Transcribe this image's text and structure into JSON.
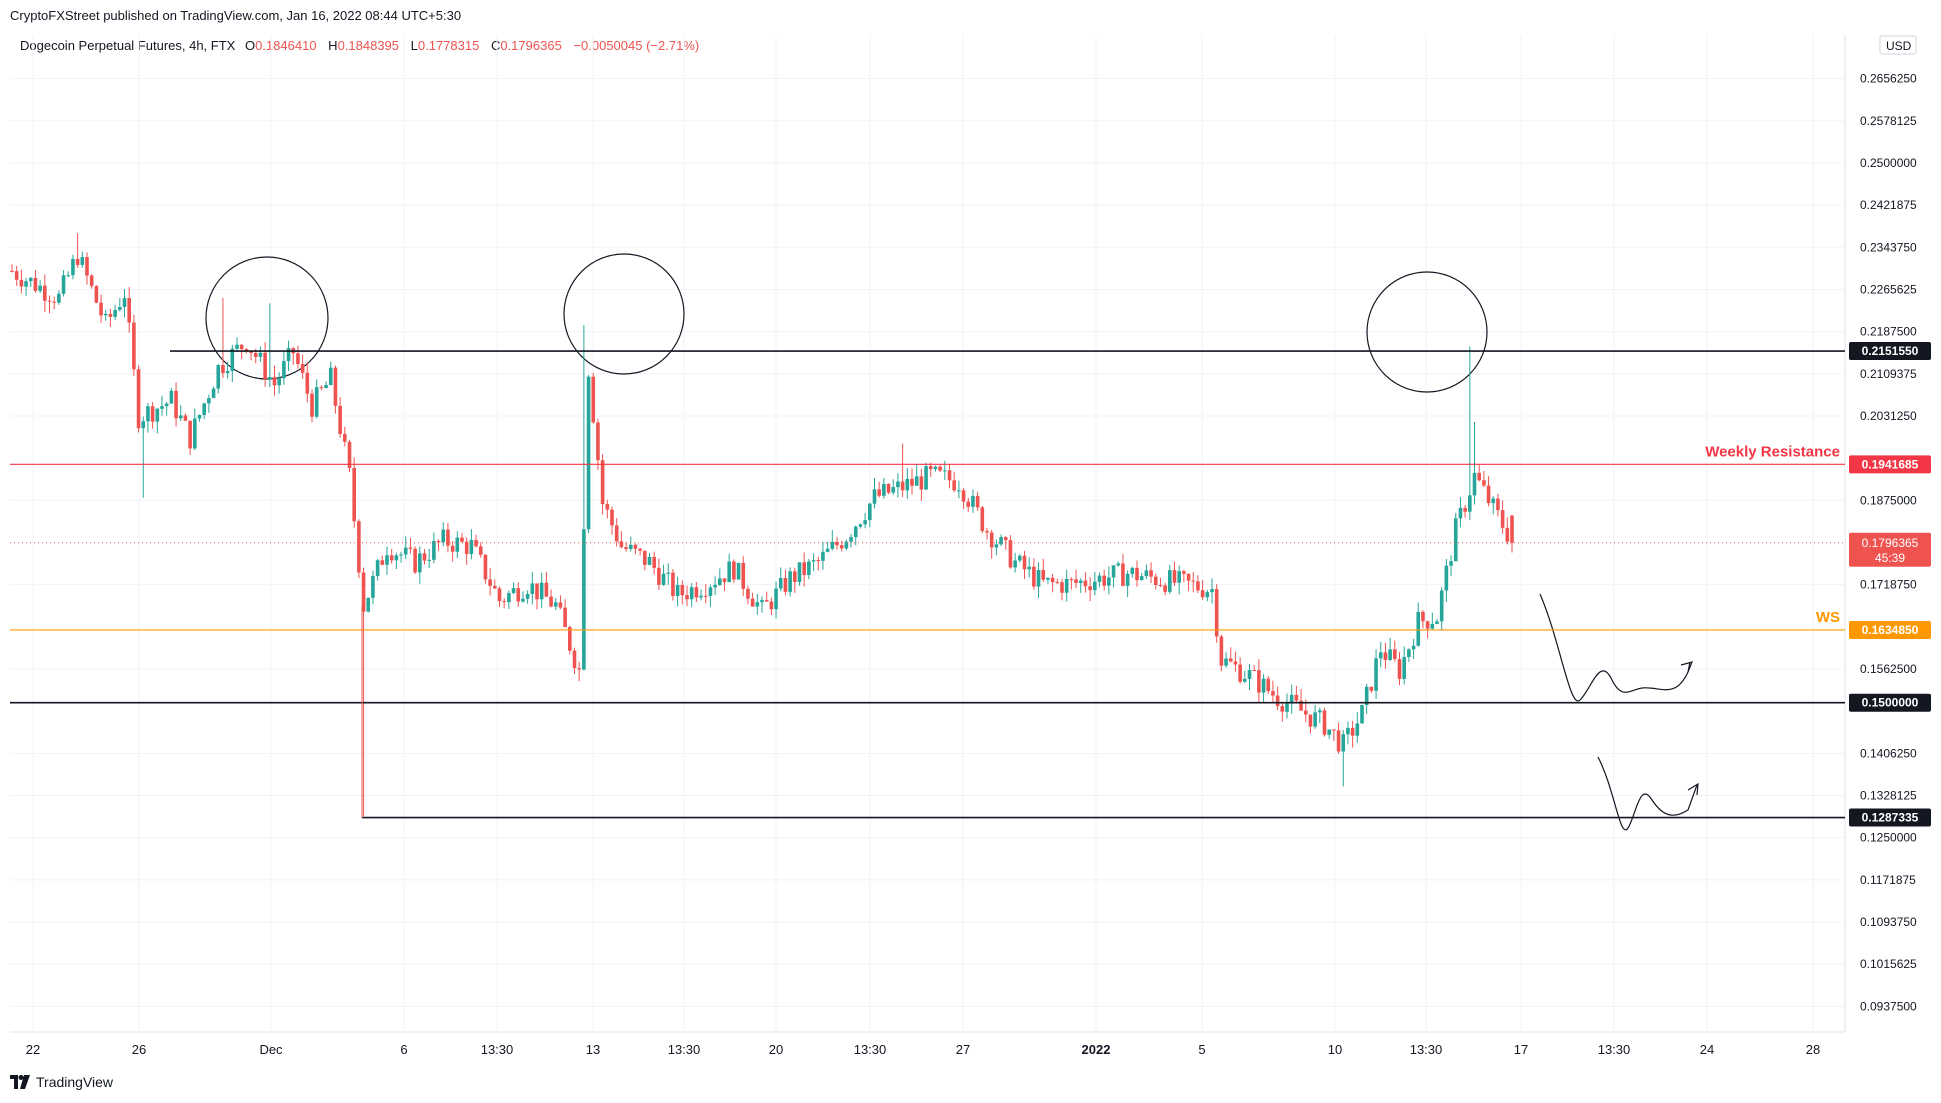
{
  "publisher_line": "CryptoFXStreet published on TradingView.com, Jan 16, 2022 08:44 UTC+5:30",
  "symbol": "Dogecoin Perpetual Futures, 4h, FTX",
  "ohlc": {
    "o_label": "O",
    "o": "0.1846410",
    "h_label": "H",
    "h": "0.1848395",
    "l_label": "L",
    "l": "0.1778315",
    "c_label": "C",
    "c": "0.1796365",
    "change": "−0.0050045 (−2.71%)"
  },
  "footer_brand": "TradingView",
  "colors": {
    "up": "#26a69a",
    "down": "#ef5350",
    "resistance": "#f23645",
    "ws": "#ff9800",
    "level": "#131722",
    "grid": "#f0f3fa"
  },
  "chart_data": {
    "type": "candlestick",
    "currency": "USD",
    "ylim": [
      0.089,
      0.27
    ],
    "y_ticks": [
      "0.2656250",
      "0.2578125",
      "0.2500000",
      "0.2421875",
      "0.2343750",
      "0.2265625",
      "0.2187500",
      "0.2109375",
      "0.2031250",
      "0.1875000",
      "0.1718750",
      "0.1562500",
      "0.1406250",
      "0.1328125",
      "0.1250000",
      "0.1171875",
      "0.1093750",
      "0.1015625",
      "0.0937500"
    ],
    "x_ticks": [
      {
        "label": "22",
        "bold": false
      },
      {
        "label": "26",
        "bold": false
      },
      {
        "label": "Dec",
        "bold": false
      },
      {
        "label": "6",
        "bold": false
      },
      {
        "label": "13:30",
        "bold": false
      },
      {
        "label": "13",
        "bold": false
      },
      {
        "label": "13:30",
        "bold": false
      },
      {
        "label": "20",
        "bold": false
      },
      {
        "label": "13:30",
        "bold": false
      },
      {
        "label": "27",
        "bold": false
      },
      {
        "label": "2022",
        "bold": true
      },
      {
        "label": "5",
        "bold": false
      },
      {
        "label": "10",
        "bold": false
      },
      {
        "label": "13:30",
        "bold": false
      },
      {
        "label": "17",
        "bold": false
      },
      {
        "label": "13:30",
        "bold": false
      },
      {
        "label": "24",
        "bold": false
      },
      {
        "label": "28",
        "bold": false
      }
    ],
    "levels": [
      {
        "value": 0.215155,
        "label": "0.2151550",
        "color": "#131722",
        "kind": "support"
      },
      {
        "value": 0.1941685,
        "label": "0.1941685",
        "color": "#f23645",
        "kind": "resistance",
        "annotation": "Weekly Resistance"
      },
      {
        "value": 0.163485,
        "label": "0.1634850",
        "color": "#ff9800",
        "kind": "ws",
        "annotation": "WS"
      },
      {
        "value": 0.15,
        "label": "0.1500000",
        "color": "#131722",
        "kind": "support"
      },
      {
        "value": 0.1287335,
        "label": "0.1287335",
        "color": "#131722",
        "kind": "support"
      }
    ],
    "last_price": {
      "value": 0.1796365,
      "label": "0.1796365",
      "countdown": "45:39"
    },
    "candles": []
  }
}
